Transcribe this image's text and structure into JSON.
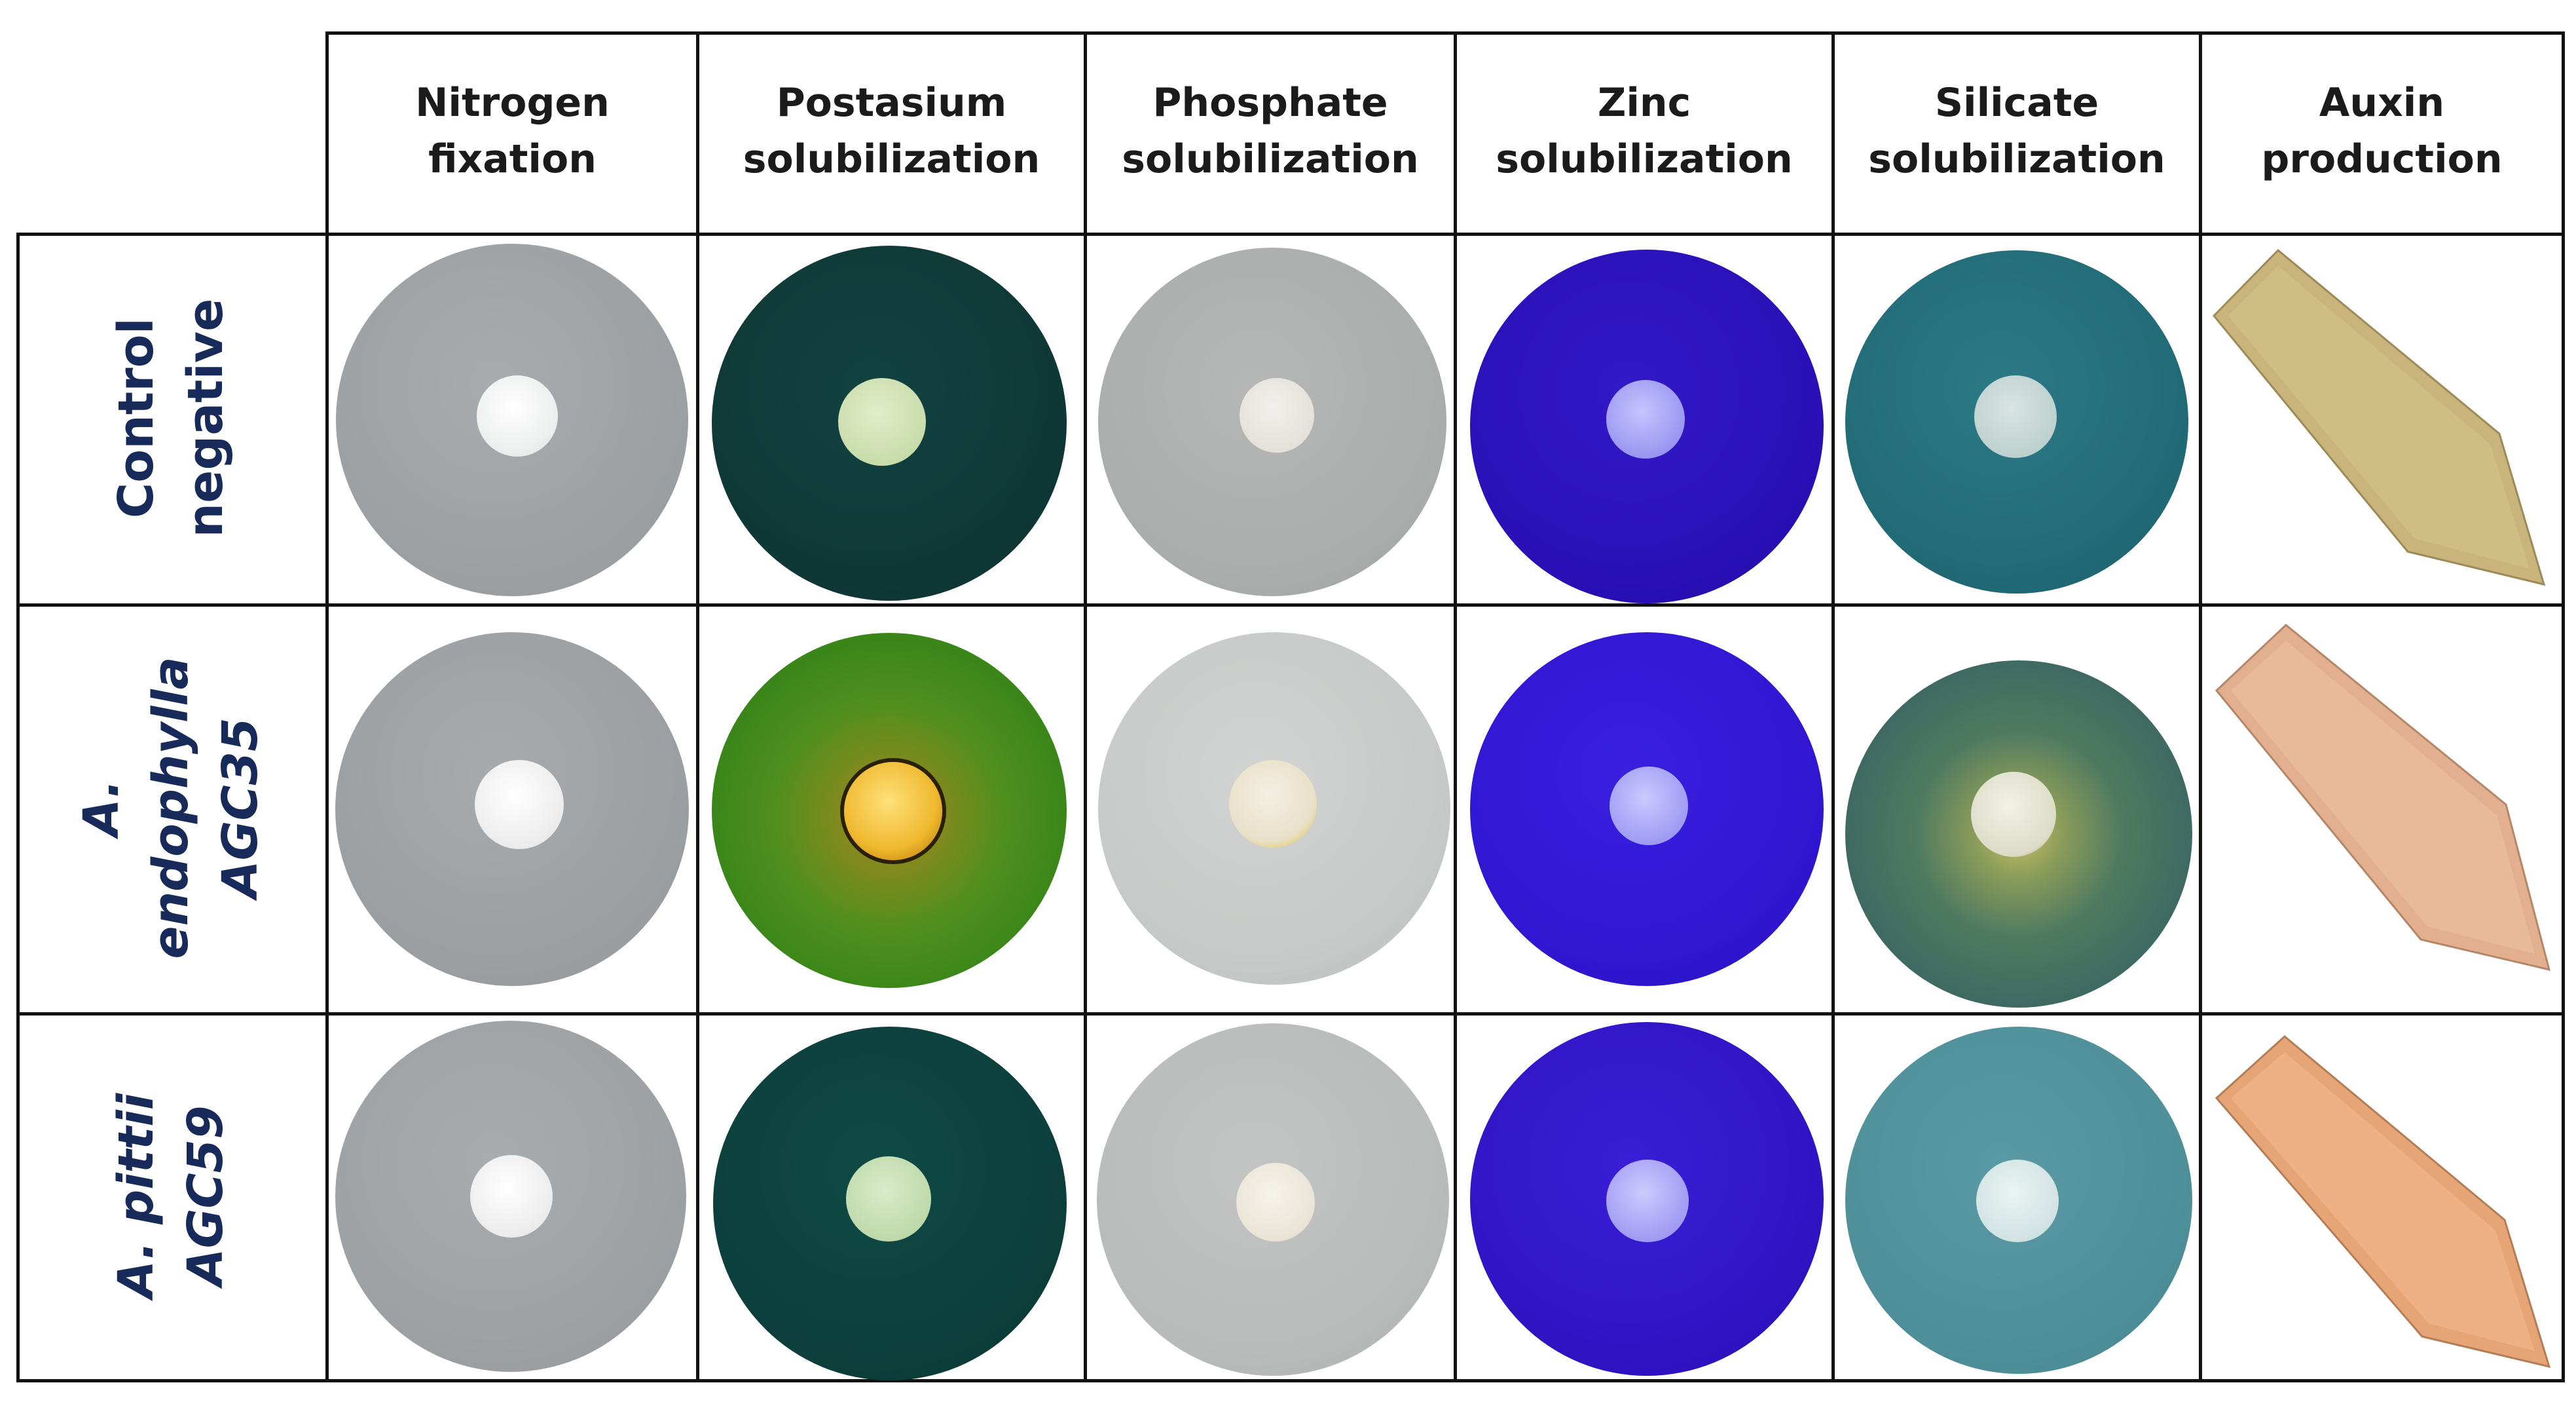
{
  "columns": [
    {
      "line1": "Nitrogen",
      "line2": "fixation"
    },
    {
      "line1": "Postasium",
      "line2": "solubilization"
    },
    {
      "line1": "Phosphate",
      "line2": "solubilization"
    },
    {
      "line1": "Zinc",
      "line2": "solubilization"
    },
    {
      "line1": "Silicate",
      "line2": "solubilization"
    },
    {
      "line1": "Auxin",
      "line2": "production"
    }
  ],
  "rows": [
    {
      "line1": "Control",
      "line2": "negative",
      "line3": ""
    },
    {
      "line1": "A.",
      "line2": "endophylla",
      "line3": "AGC35"
    },
    {
      "line1": "A. pittii",
      "line2": "AGC59",
      "line3": ""
    }
  ],
  "colors": {
    "header_text": "#1b1b1b",
    "row_label_text": "#172a59",
    "grid_line": "#111111",
    "nitrogen_plate": "#9fa2a5",
    "potassium_plate_negative": "#0f3a38",
    "potassium_plate_active": "#3f8a1c",
    "phosphate_plate": "#b9bbbb",
    "zinc_plate": "#2a12b8",
    "silicate_plate": "#1f6b78",
    "auxin_tube_negative": "#c7b27a",
    "auxin_tube_positive": "#e6a57a"
  }
}
